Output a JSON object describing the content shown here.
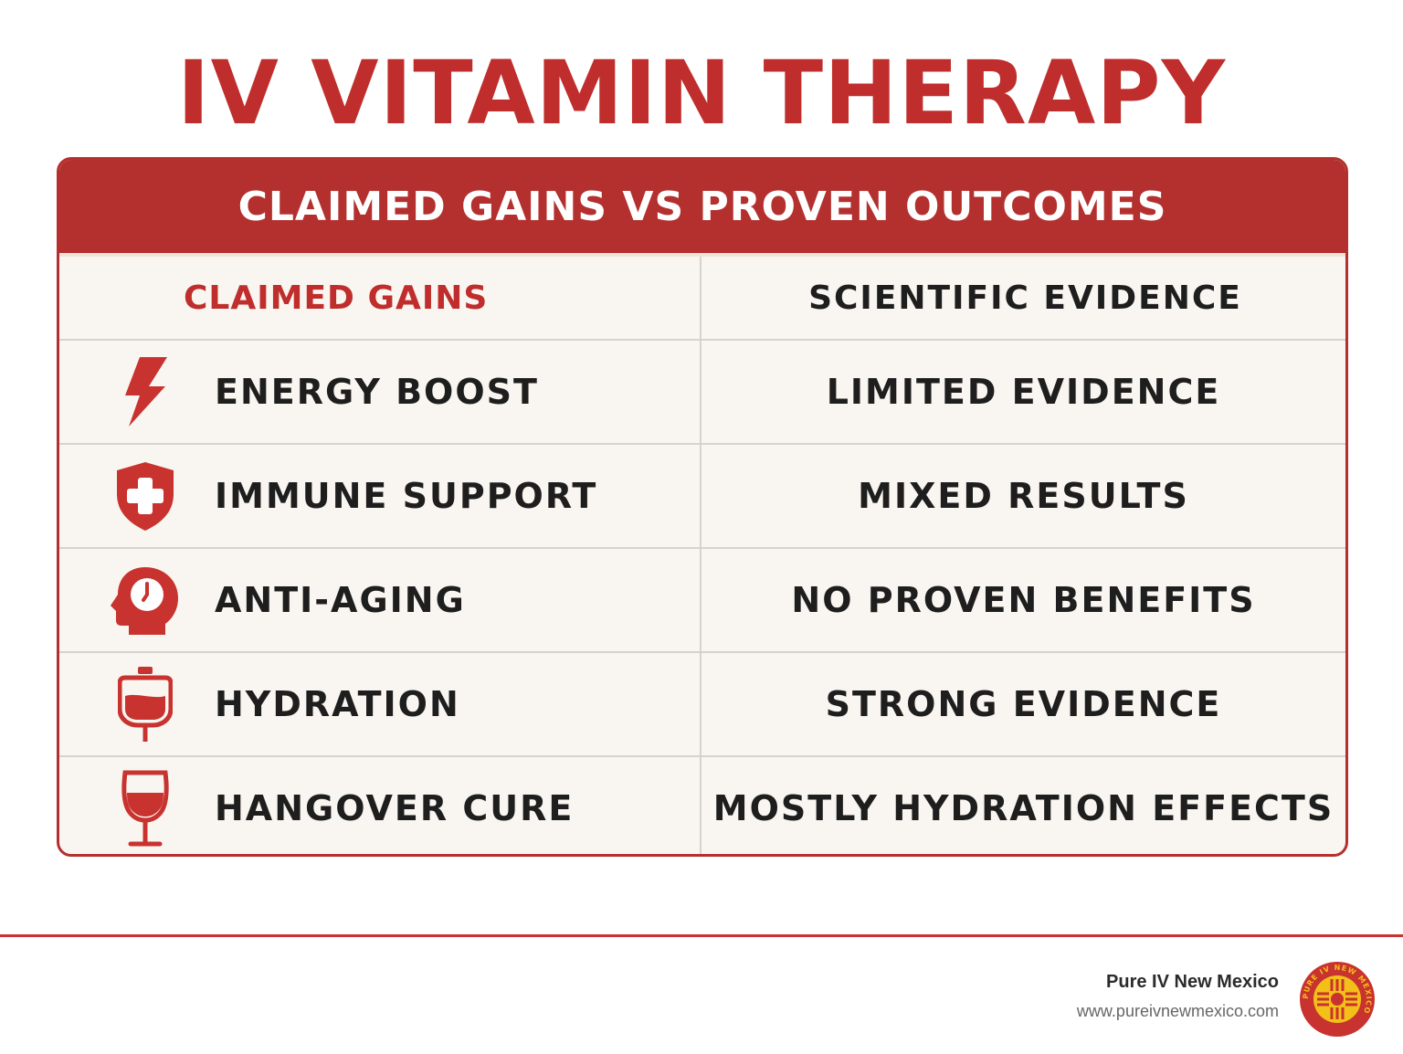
{
  "title": "IV VITAMIN THERAPY",
  "table": {
    "caption": "CLAIMED GAINS VS PROVEN OUTCOMES",
    "headers": {
      "left": "CLAIMED GAINS",
      "right": "SCIENTIFIC EVIDENCE"
    },
    "rows": [
      {
        "icon": "lightning-bolt-icon",
        "claim": "ENERGY BOOST",
        "evidence": "LIMITED EVIDENCE"
      },
      {
        "icon": "shield-cross-icon",
        "claim": "IMMUNE SUPPORT",
        "evidence": "MIXED RESULTS"
      },
      {
        "icon": "head-clock-icon",
        "claim": "ANTI-AGING",
        "evidence": "NO PROVEN BENEFITS"
      },
      {
        "icon": "iv-bag-icon",
        "claim": "HYDRATION",
        "evidence": "STRONG EVIDENCE"
      },
      {
        "icon": "wine-glass-icon",
        "claim": "HANGOVER CURE",
        "evidence": "MOSTLY HYDRATION EFFECTS"
      }
    ]
  },
  "footer": {
    "brand_name": "Pure IV New Mexico",
    "website": "www.pureivnewmexico.com",
    "seal_text": "PURE IV NEW MEXICO"
  },
  "colors": {
    "accent": "#bf2e2c",
    "text": "#1e1e1e",
    "card_background": "#f9f6f1",
    "seal_yellow": "#f2c018"
  }
}
